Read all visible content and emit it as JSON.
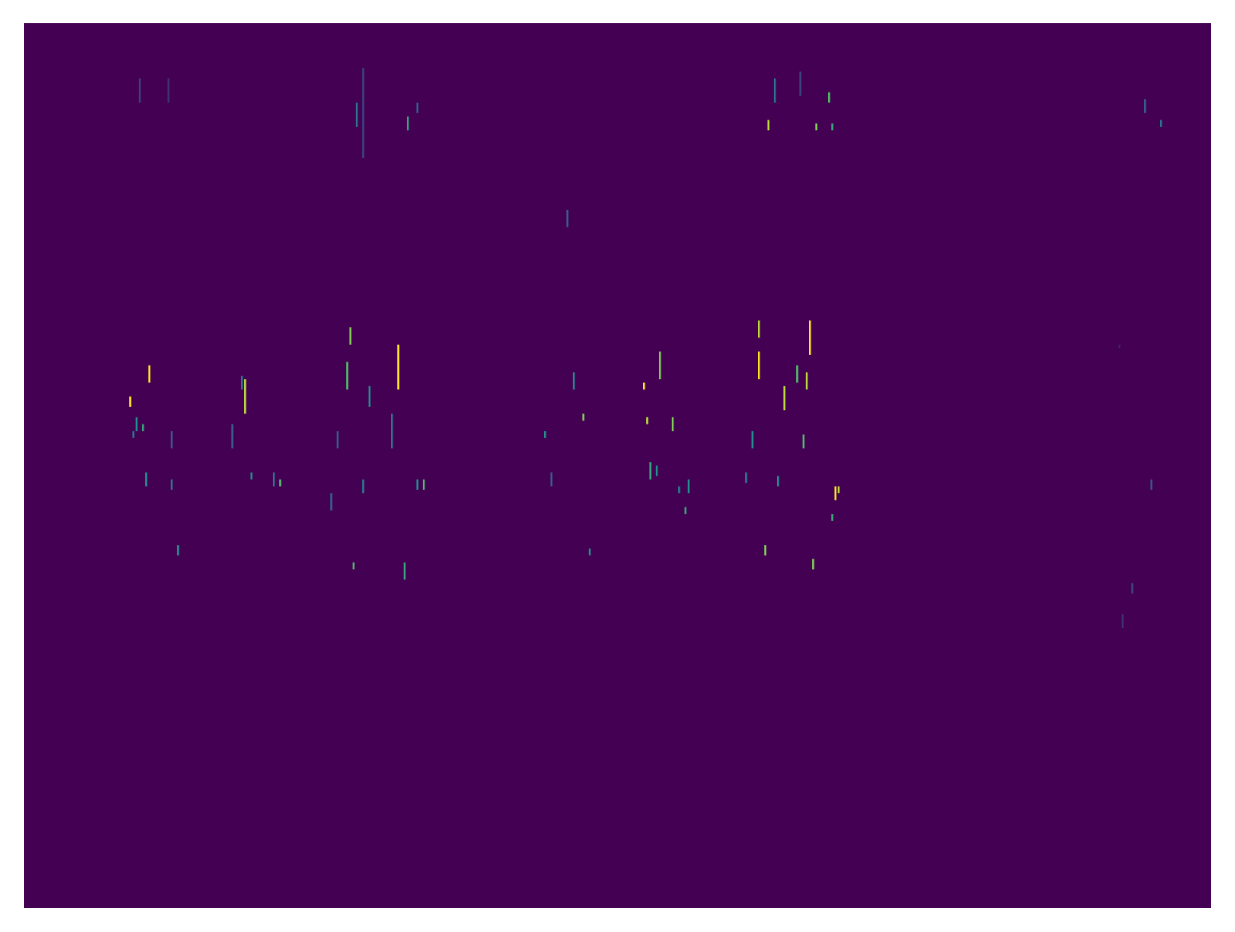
{
  "chart_data": {
    "type": "heatmap",
    "tick_labels": false,
    "xlim": [
      0,
      372
    ],
    "ylim": [
      0,
      256
    ],
    "clim": [
      0,
      1
    ],
    "cells": [
      [
        33,
        145,
        148,
        1.0
      ],
      [
        39,
        152,
        157,
        1.0
      ],
      [
        35,
        138,
        142,
        0.5
      ],
      [
        37,
        138,
        140,
        0.6
      ],
      [
        34,
        136,
        138,
        0.4
      ],
      [
        38,
        122,
        126,
        0.5
      ],
      [
        46,
        133,
        138,
        0.3
      ],
      [
        46,
        121,
        124,
        0.4
      ],
      [
        48,
        102,
        105,
        0.5
      ],
      [
        36,
        233,
        240,
        0.2
      ],
      [
        45,
        233,
        240,
        0.15
      ],
      [
        69,
        143,
        153,
        0.9
      ],
      [
        68,
        150,
        154,
        0.4
      ],
      [
        65,
        133,
        140,
        0.3
      ],
      [
        71,
        124,
        126,
        0.5
      ],
      [
        80,
        122,
        124,
        0.7
      ],
      [
        78,
        122,
        126,
        0.4
      ],
      [
        102,
        163,
        168,
        0.8
      ],
      [
        101,
        150,
        158,
        0.7
      ],
      [
        108,
        145,
        151,
        0.5
      ],
      [
        117,
        150,
        163,
        1.0
      ],
      [
        115,
        133,
        143,
        0.4
      ],
      [
        98,
        133,
        138,
        0.3
      ],
      [
        106,
        120,
        124,
        0.4
      ],
      [
        125,
        121,
        124,
        0.7
      ],
      [
        123,
        121,
        124,
        0.5
      ],
      [
        103,
        98,
        100,
        0.7
      ],
      [
        119,
        95,
        100,
        0.6
      ],
      [
        106,
        217,
        243,
        0.2
      ],
      [
        104,
        226,
        233,
        0.4
      ],
      [
        120,
        225,
        229,
        0.6
      ],
      [
        123,
        230,
        233,
        0.3
      ],
      [
        96,
        115,
        120,
        0.3
      ],
      [
        163,
        136,
        138,
        0.5
      ],
      [
        172,
        150,
        155,
        0.5
      ],
      [
        175,
        141,
        143,
        0.8
      ],
      [
        165,
        122,
        126,
        0.3
      ],
      [
        177,
        102,
        104,
        0.5
      ],
      [
        170,
        197,
        202,
        0.3
      ],
      [
        194,
        150,
        152,
        1.0
      ],
      [
        195,
        140,
        142,
        0.9
      ],
      [
        199,
        153,
        161,
        0.8
      ],
      [
        203,
        138,
        142,
        0.8
      ],
      [
        196,
        124,
        129,
        0.6
      ],
      [
        198,
        125,
        128,
        0.5
      ],
      [
        208,
        120,
        124,
        0.5
      ],
      [
        207,
        114,
        116,
        0.6
      ],
      [
        205,
        120,
        122,
        0.4
      ],
      [
        230,
        165,
        170,
        0.9
      ],
      [
        230,
        153,
        161,
        1.0
      ],
      [
        246,
        160,
        170,
        1.0
      ],
      [
        245,
        150,
        155,
        0.9
      ],
      [
        238,
        144,
        151,
        0.9
      ],
      [
        242,
        152,
        157,
        0.7
      ],
      [
        228,
        133,
        138,
        0.5
      ],
      [
        244,
        133,
        137,
        0.7
      ],
      [
        236,
        122,
        125,
        0.5
      ],
      [
        226,
        123,
        126,
        0.4
      ],
      [
        254,
        118,
        122,
        1.0
      ],
      [
        255,
        120,
        122,
        0.9
      ],
      [
        253,
        112,
        114,
        0.6
      ],
      [
        232,
        102,
        105,
        0.8
      ],
      [
        247,
        98,
        101,
        0.8
      ],
      [
        233,
        225,
        228,
        0.9
      ],
      [
        235,
        233,
        240,
        0.4
      ],
      [
        252,
        233,
        236,
        0.7
      ],
      [
        248,
        225,
        227,
        0.8
      ],
      [
        253,
        225,
        227,
        0.6
      ],
      [
        243,
        235,
        242,
        0.2
      ],
      [
        356,
        226,
        228,
        0.4
      ],
      [
        351,
        230,
        234,
        0.3
      ],
      [
        353,
        121,
        124,
        0.25
      ],
      [
        347,
        91,
        94,
        0.2
      ],
      [
        344,
        81,
        85,
        0.15
      ],
      [
        343,
        162,
        163,
        0.1
      ]
    ]
  }
}
